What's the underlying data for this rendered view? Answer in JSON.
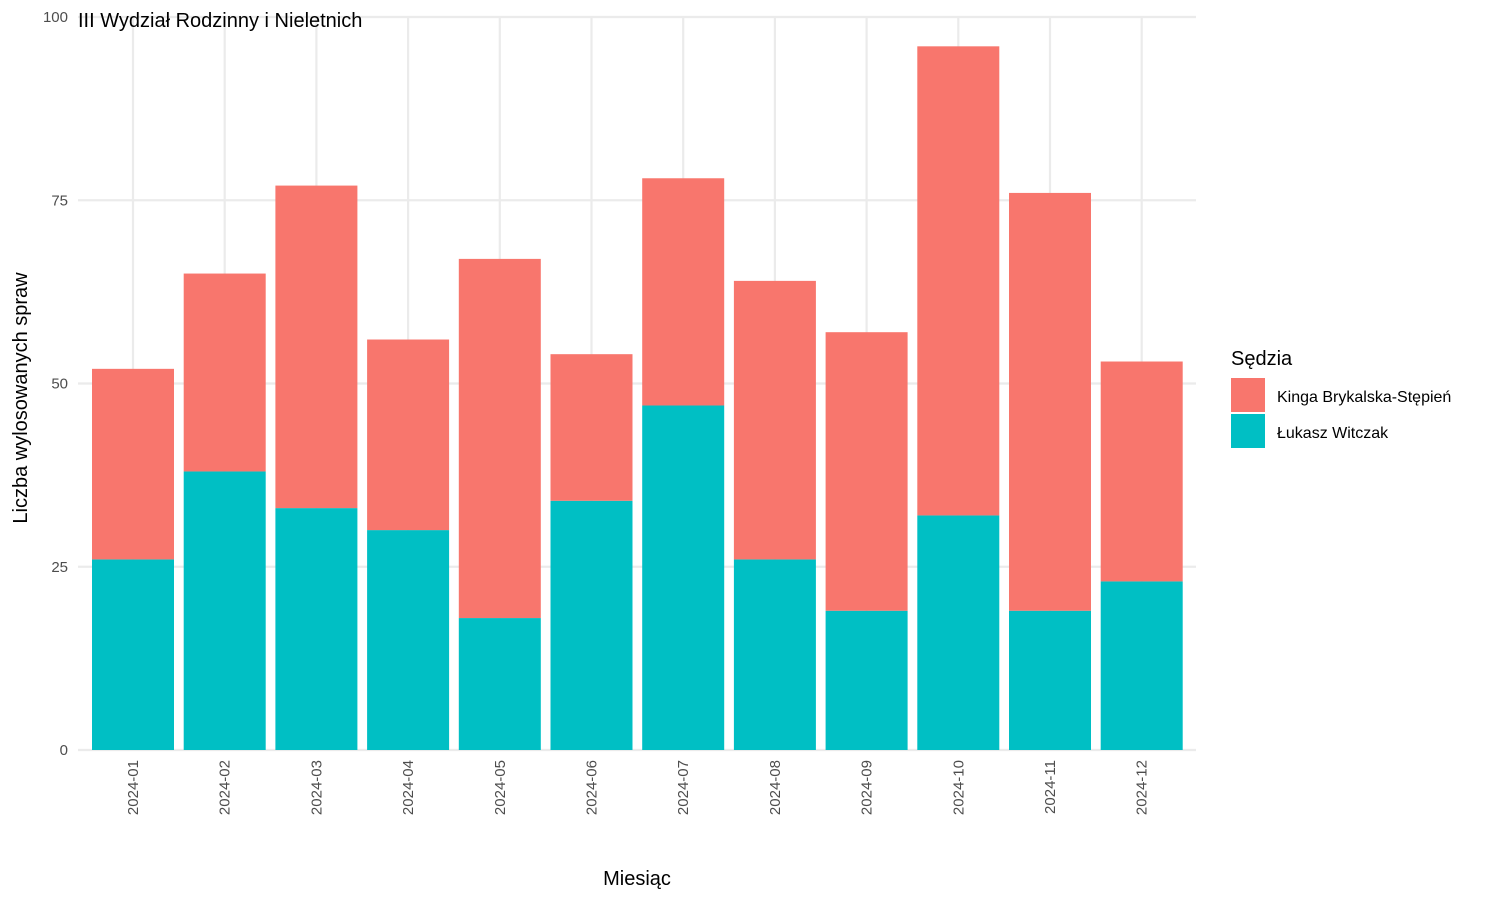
{
  "chart_data": {
    "type": "bar",
    "stacked": true,
    "title": "III Wydział Rodzinny i Nieletnich",
    "xlabel": "Miesiąc",
    "ylabel": "Liczba wylosowanych spraw",
    "ylim": [
      0,
      100
    ],
    "yticks": [
      0,
      25,
      50,
      75,
      100
    ],
    "grid": true,
    "categories": [
      "2024-01",
      "2024-02",
      "2024-03",
      "2024-04",
      "2024-05",
      "2024-06",
      "2024-07",
      "2024-08",
      "2024-09",
      "2024-10",
      "2024-11",
      "2024-12"
    ],
    "series": [
      {
        "name": "Łukasz Witczak",
        "color": "#00BFC4",
        "values": [
          26,
          38,
          33,
          30,
          18,
          34,
          47,
          26,
          19,
          32,
          19,
          23
        ]
      },
      {
        "name": "Kinga Brykalska-Stępień",
        "color": "#F8766D",
        "values": [
          26,
          27,
          44,
          26,
          49,
          20,
          31,
          38,
          38,
          64,
          57,
          30
        ]
      }
    ],
    "legend": {
      "title": "Sędzia",
      "position": "right",
      "entries": [
        {
          "label": "Kinga Brykalska-Stępień",
          "color": "#F8766D"
        },
        {
          "label": "Łukasz Witczak",
          "color": "#00BFC4"
        }
      ]
    }
  }
}
